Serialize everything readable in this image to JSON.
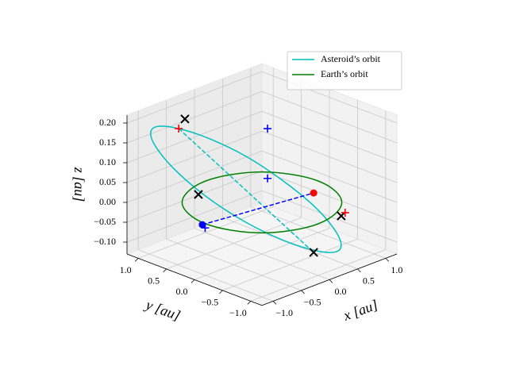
{
  "chart_data": {
    "type": "line3d",
    "xlabel": "x [au]",
    "ylabel": "y [au]",
    "zlabel": "z [au]",
    "xlim": [
      -1.2,
      1.2
    ],
    "ylim": [
      -1.2,
      1.2
    ],
    "zlim": [
      -0.13,
      0.22
    ],
    "xticks": [
      {
        "value": -1,
        "label": "−1.0"
      },
      {
        "value": -0.5,
        "label": "−0.5"
      },
      {
        "value": 0,
        "label": "0.0"
      },
      0.5,
      {
        "value": 1,
        "label": "1.0"
      }
    ],
    "yticks": [
      {
        "value": -1,
        "label": "−1.0"
      },
      {
        "value": -0.5,
        "label": "−0.5"
      },
      {
        "value": 0,
        "label": "0.0"
      },
      0.5,
      {
        "value": 1,
        "label": "1.0"
      }
    ],
    "zticks": [
      {
        "value": -0.1,
        "label": "−0.10"
      },
      {
        "value": -0.05,
        "label": "−0.05"
      },
      {
        "value": 0,
        "label": "0.00"
      },
      {
        "value": 0.05,
        "label": "0.05"
      },
      {
        "value": 0.1,
        "label": "0.10"
      },
      {
        "value": 0.15,
        "label": "0.15"
      },
      {
        "value": 0.2,
        "label": "0.20"
      }
    ],
    "grid": true,
    "legend": "upper right",
    "series": [
      {
        "name": "Asteroid’s orbit",
        "color": "#00bfbf",
        "linestyle": "solid",
        "closed": true,
        "x": [
          -0.87,
          -0.74,
          -0.55,
          -0.32,
          -0.08,
          0.12,
          0.26,
          0.31,
          0.27,
          0.14,
          -0.05,
          -0.29,
          -0.52,
          -0.72,
          -0.86,
          -0.91
        ],
        "y": [
          0.61,
          0.19,
          -0.27,
          -0.68,
          -1.0,
          -1.16,
          -1.15,
          -0.97,
          -0.64,
          -0.22,
          0.24,
          0.65,
          0.97,
          1.13,
          1.12,
          0.94
        ],
        "z": [
          0.2,
          0.19,
          0.16,
          0.11,
          0.05,
          -0.01,
          -0.06,
          -0.09,
          -0.1,
          -0.09,
          -0.06,
          -0.01,
          0.05,
          0.11,
          0.16,
          0.19
        ]
      },
      {
        "name": "Earth’s orbit",
        "color": "#008000",
        "linestyle": "solid",
        "closed": true,
        "x": [
          1,
          0.92,
          0.71,
          0.38,
          0,
          -0.38,
          -0.71,
          -0.92,
          -1,
          -0.92,
          -0.71,
          -0.38,
          0,
          0.38,
          0.71,
          0.92
        ],
        "y": [
          0,
          0.38,
          0.71,
          0.92,
          1,
          0.92,
          0.71,
          0.38,
          0,
          -0.38,
          -0.71,
          -0.92,
          -1,
          -0.92,
          -0.71,
          -0.38
        ],
        "z": [
          0,
          0,
          0,
          0,
          0,
          0,
          0,
          0,
          0,
          0,
          0,
          0,
          0,
          0,
          0,
          0
        ]
      },
      {
        "color": "#00bfbf",
        "linestyle": "dashed",
        "x": [
          -0.87,
          0.22
        ],
        "y": [
          0.61,
          -0.7
        ],
        "z": [
          0.2,
          -0.1
        ]
      },
      {
        "color": "#0000ff",
        "linestyle": "dashed",
        "x": [
          -1.05,
          0.68
        ],
        "y": [
          0.01,
          -0.24
        ],
        "z": [
          0,
          0
        ]
      },
      {
        "color": "#000000",
        "linestyle": "none",
        "marker": "x",
        "x": [
          -0.59,
          -0.38,
          0.22,
          0.39
        ],
        "y": [
          0.78,
          0.75,
          -0.7,
          -1.02
        ],
        "z": [
          0.2,
          0,
          -0.1,
          0
        ]
      },
      {
        "color": "#ff0000",
        "linestyle": "none",
        "marker": "+",
        "x": [
          -0.87,
          0.5
        ],
        "y": [
          0.61,
          -0.98
        ],
        "z": [
          0.2,
          0
        ]
      },
      {
        "color": "#0000ff",
        "linestyle": "none",
        "marker": "+",
        "x": [
          -0.08,
          0.61,
          -1.1
        ],
        "y": [
          -0.18,
          0.51,
          -0.09
        ],
        "z": [
          0.2,
          0,
          0
        ]
      },
      {
        "color": "#ff0000",
        "linestyle": "none",
        "marker": "o",
        "x": [
          0.68
        ],
        "y": [
          -0.24
        ],
        "z": [
          0
        ]
      },
      {
        "color": "#0000ff",
        "linestyle": "none",
        "marker": "o",
        "x": [
          -1.05
        ],
        "y": [
          0.01
        ],
        "z": [
          0
        ]
      }
    ]
  }
}
